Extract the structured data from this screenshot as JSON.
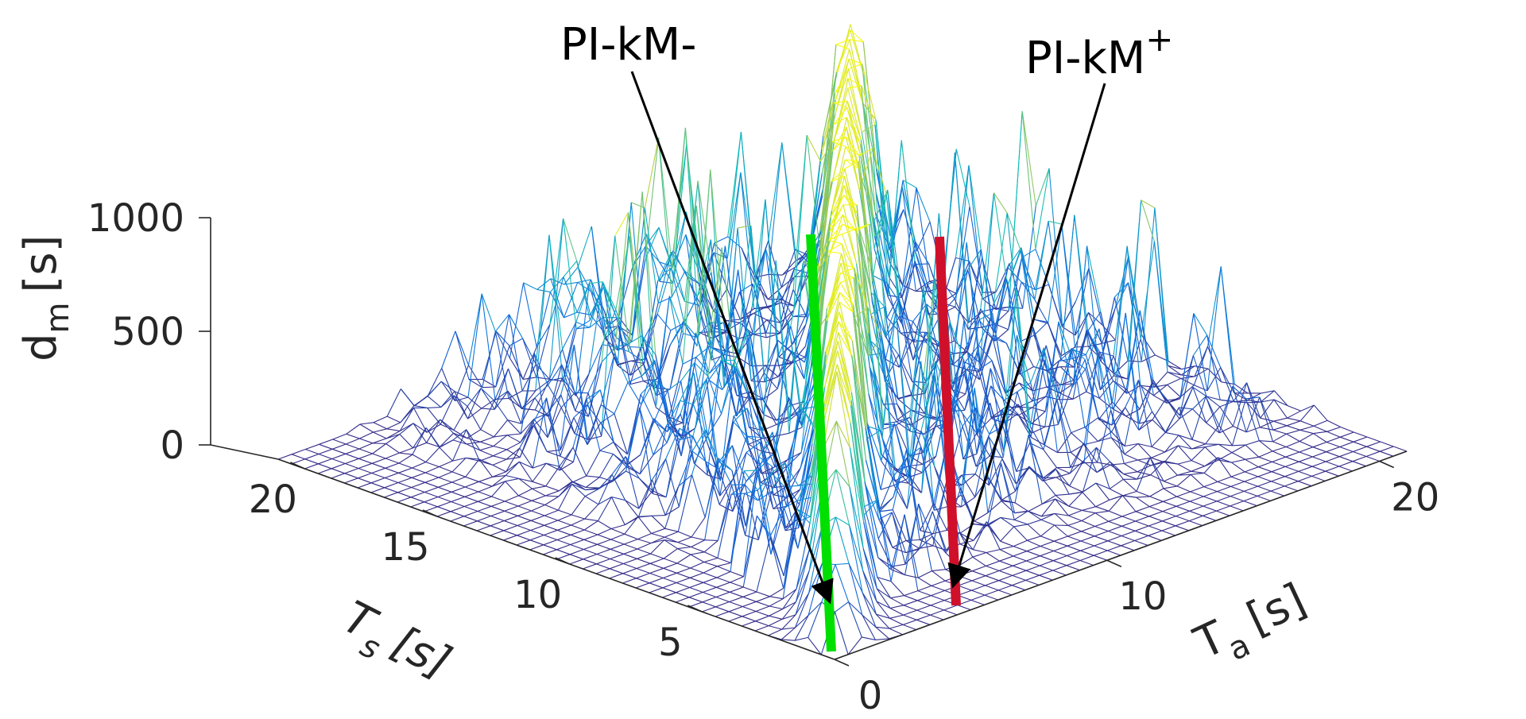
{
  "chart_data": {
    "type": "mesh3d",
    "title": "",
    "zlabel": {
      "base": "d",
      "sub": "m",
      "unit": "[s]"
    },
    "ylabel": {
      "base": "T",
      "sub": "s",
      "unit": "[s]"
    },
    "xlabel": {
      "base": "T",
      "sub": "a",
      "unit": "[s]"
    },
    "z_ticks": [
      0,
      500,
      1000
    ],
    "z_tick_labels": [
      "0",
      "500",
      "1000"
    ],
    "zlim": [
      0,
      1000
    ],
    "y_ticks": [
      5,
      10,
      15,
      20
    ],
    "y_tick_labels": [
      "5",
      "10",
      "15",
      "20"
    ],
    "ylim": [
      0,
      21
    ],
    "x_ticks": [
      0,
      10,
      20
    ],
    "x_tick_labels": [
      "0",
      "10",
      "20"
    ],
    "xlim": [
      0,
      21
    ],
    "grid": false,
    "series": [
      {
        "name": "d_m surface",
        "kind": "mesh",
        "colormap": "parula",
        "peak_ridge_at_Ta_equals_Ts": 1000
      },
      {
        "name": "PI-kM-",
        "kind": "line3d",
        "color": "#00e000",
        "Ts": [
          0,
          21
        ],
        "Ta": [
          0,
          0
        ],
        "dm": [
          0,
          920
        ]
      },
      {
        "name": "PI-kM+",
        "kind": "line3d",
        "color": "#d0102a",
        "Ts": [
          0,
          0
        ],
        "Ta": [
          0.5,
          3
        ],
        "dm": [
          0,
          900
        ]
      }
    ],
    "annotations": [
      {
        "label": "PI-kM-",
        "text": "PI-kM-",
        "sup": "",
        "target_series": "PI-kM-"
      },
      {
        "label": "PI-kM+",
        "text": "PI-kM",
        "sup": "+",
        "target_series": "PI-kM+"
      }
    ]
  }
}
